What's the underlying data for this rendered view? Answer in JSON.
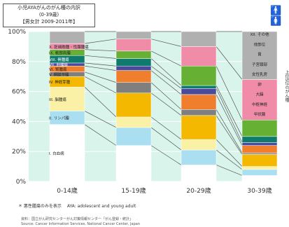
{
  "title": {
    "line1": "小児AYAがんのがん種の内訳",
    "line2": "(0-39歳)",
    "line3": "【男女計 2009-2011年】"
  },
  "side_label": "上位5位のがん種",
  "footnote": "＊ 悪性腫瘍のみを表示　 AYA: adolescent and young adult",
  "source_line1": "資料：国立がん研究センターがん対策情報センター「がん登録・統計」",
  "source_line2": "Source: Cancer Information Services, National Cancer Center, Japan",
  "colors": {
    "background": "#ffffff",
    "plot_bg": "#d9f4ea",
    "connector": "#555555",
    "female_icon": "#d62e7c",
    "male_icon": "#1f3d7a"
  },
  "chart_data": {
    "type": "bar",
    "stacked": true,
    "categories": [
      "0-14歳",
      "15-19歳",
      "20-29歳",
      "30-39歳"
    ],
    "ylim": [
      0,
      100
    ],
    "yticks": [
      "0%",
      "20%",
      "40%",
      "60%",
      "80%",
      "100%"
    ],
    "grid": true,
    "series": [
      {
        "name": "I. 白血病",
        "color": "#ffffff",
        "values": [
          38,
          24,
          11,
          4
        ]
      },
      {
        "name": "II. リンパ腫",
        "color": "#a9dff0",
        "values": [
          9,
          12,
          10,
          4
        ]
      },
      {
        "name": "III. 脳腫瘍",
        "color": "#fbf1a6",
        "values": [
          16,
          7,
          7,
          2
        ]
      },
      {
        "name": "IV. 神経芽腫",
        "color": "#f5b800",
        "values": [
          7,
          16,
          16,
          8
        ]
      },
      {
        "name": "V. 網膜芽腫",
        "color": "#7f7f7f",
        "values": [
          3,
          7,
          4,
          1
        ]
      },
      {
        "name": "VI. 腎腫瘍",
        "color": "#ef7f2d",
        "values": [
          4,
          8,
          10,
          5
        ]
      },
      {
        "name": "VII. 肝腫瘍",
        "color": "#4a4a9c",
        "values": [
          2,
          3,
          4,
          2
        ]
      },
      {
        "name": "VIII. 骨腫瘍",
        "color": "#0e7b6c",
        "values": [
          5,
          5,
          2,
          4
        ]
      },
      {
        "name": "IX. 軟部肉腫",
        "color": "#66b034",
        "values": [
          4,
          5,
          13,
          11
        ]
      },
      {
        "name": "X. 胚細胞腫・性腺腫瘍",
        "color": "#f08ca8",
        "values": [
          4,
          8,
          13,
          27
        ]
      },
      {
        "name": "XII. その他",
        "color": "#b0b0b0",
        "values": [
          8,
          5,
          10,
          32
        ]
      }
    ],
    "left_labels": [
      "I. 白血病",
      "II. リンパ腫",
      "III. 脳腫瘍",
      "IV. 神経芽腫",
      "V. 網膜芽腫",
      "VI. 腎腫瘍",
      "VII. 肝腫瘍",
      "VIII. 骨腫瘍",
      "IX. 軟部肉腫",
      "X. 胚細胞腫・性腺腫瘍"
    ],
    "right_labels": [
      "XII. その他",
      "他部位",
      "胃",
      "子宮頸部",
      "女性乳房",
      "卵",
      "大腸",
      "中枢神経",
      "甲状腺"
    ]
  }
}
